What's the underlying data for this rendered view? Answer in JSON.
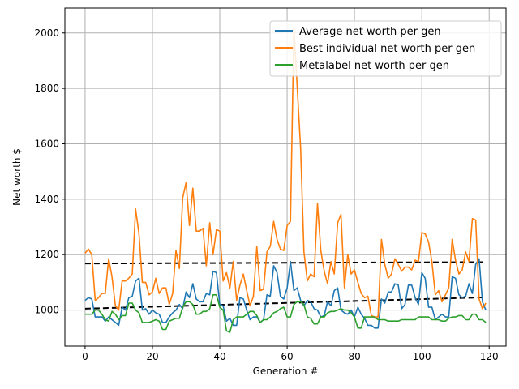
{
  "chart_data": {
    "type": "line",
    "title": "",
    "xlabel": "Generation #",
    "ylabel": "Net worth $",
    "xlim": [
      -6,
      125
    ],
    "ylim": [
      870,
      2090
    ],
    "xticks": [
      0,
      20,
      40,
      60,
      80,
      100,
      120
    ],
    "yticks": [
      1000,
      1200,
      1400,
      1600,
      1800,
      2000
    ],
    "xtick_labels": [
      "0",
      "20",
      "40",
      "60",
      "80",
      "100",
      "120"
    ],
    "ytick_labels": [
      "1000",
      "1200",
      "1400",
      "1600",
      "1800",
      "2000"
    ],
    "grid": true,
    "legend_position": "top-right",
    "x": [
      0,
      1,
      2,
      3,
      4,
      5,
      6,
      7,
      8,
      9,
      10,
      11,
      12,
      13,
      14,
      15,
      16,
      17,
      18,
      19,
      20,
      21,
      22,
      23,
      24,
      25,
      26,
      27,
      28,
      29,
      30,
      31,
      32,
      33,
      34,
      35,
      36,
      37,
      38,
      39,
      40,
      41,
      42,
      43,
      44,
      45,
      46,
      47,
      48,
      49,
      50,
      51,
      52,
      53,
      54,
      55,
      56,
      57,
      58,
      59,
      60,
      61,
      62,
      63,
      64,
      65,
      66,
      67,
      68,
      69,
      70,
      71,
      72,
      73,
      74,
      75,
      76,
      77,
      78,
      79,
      80,
      81,
      82,
      83,
      84,
      85,
      86,
      87,
      88,
      89,
      90,
      91,
      92,
      93,
      94,
      95,
      96,
      97,
      98,
      99,
      100,
      101,
      102,
      103,
      104,
      105,
      106,
      107,
      108,
      109,
      110,
      111,
      112,
      113,
      114,
      115,
      116,
      117,
      118,
      119
    ],
    "series": [
      {
        "name": "Average net worth per gen",
        "color": "#1f77b4",
        "values": [
          1035,
          1045,
          1040,
          975,
          975,
          975,
          960,
          975,
          965,
          955,
          945,
          1010,
          1000,
          1045,
          1050,
          1105,
          1115,
          1000,
          1005,
          985,
          1000,
          990,
          985,
          955,
          955,
          975,
          990,
          1000,
          1020,
          1005,
          1065,
          1045,
          1095,
          1040,
          1030,
          1030,
          1060,
          1055,
          1140,
          1135,
          1020,
          1015,
          960,
          970,
          945,
          945,
          1045,
          1040,
          1000,
          965,
          975,
          975,
          955,
          965,
          1055,
          1050,
          1160,
          1135,
          1050,
          1040,
          1080,
          1175,
          1070,
          1080,
          1035,
          1015,
          1035,
          1030,
          1005,
          1000,
          975,
          980,
          1030,
          1015,
          1070,
          1080,
          1000,
          990,
          985,
          1000,
          975,
          1010,
          985,
          970,
          945,
          945,
          935,
          935,
          1040,
          1025,
          1065,
          1065,
          1095,
          1090,
          1005,
          1020,
          1090,
          1090,
          1045,
          1020,
          1135,
          1115,
          1010,
          1010,
          965,
          975,
          985,
          975,
          975,
          1120,
          1115,
          1055,
          1045,
          1050,
          1095,
          1060,
          1165,
          1185,
          1030,
          1000
        ]
      },
      {
        "name": "Best individual net worth per gen",
        "color": "#ff7f0e",
        "values": [
          1205,
          1220,
          1200,
          1035,
          1045,
          1060,
          1060,
          1185,
          1120,
          1015,
          1000,
          1105,
          1105,
          1115,
          1130,
          1365,
          1275,
          1100,
          1100,
          1055,
          1065,
          1115,
          1060,
          1080,
          1080,
          1020,
          1060,
          1215,
          1150,
          1405,
          1460,
          1305,
          1440,
          1285,
          1285,
          1295,
          1160,
          1315,
          1200,
          1290,
          1285,
          1105,
          1135,
          1080,
          1175,
          1035,
          1090,
          1130,
          1070,
          1015,
          1050,
          1230,
          1070,
          1075,
          1210,
          1230,
          1320,
          1255,
          1220,
          1215,
          1305,
          1320,
          2020,
          1805,
          1585,
          1210,
          1105,
          1130,
          1120,
          1385,
          1215,
          1140,
          1095,
          1175,
          1130,
          1315,
          1345,
          1080,
          1200,
          1130,
          1145,
          1100,
          1060,
          1045,
          1050,
          980,
          975,
          975,
          1255,
          1165,
          1115,
          1130,
          1185,
          1165,
          1140,
          1155,
          1155,
          1145,
          1180,
          1175,
          1280,
          1275,
          1245,
          1175,
          1055,
          1070,
          1030,
          1055,
          1080,
          1255,
          1180,
          1130,
          1145,
          1210,
          1175,
          1330,
          1325,
          1040,
          1005,
          1025
        ]
      },
      {
        "name": "Metalabel net worth per gen",
        "color": "#2ca02c",
        "values": [
          985,
          985,
          985,
          1000,
          1000,
          985,
          965,
          960,
          995,
          985,
          965,
          980,
          980,
          1025,
          1025,
          1000,
          990,
          955,
          955,
          955,
          960,
          965,
          960,
          930,
          930,
          960,
          965,
          970,
          970,
          1010,
          1030,
          1030,
          1020,
          985,
          985,
          995,
          995,
          1005,
          1055,
          1055,
          1010,
          1000,
          925,
          920,
          965,
          975,
          975,
          975,
          985,
          995,
          995,
          980,
          955,
          965,
          965,
          975,
          990,
          995,
          1005,
          1010,
          975,
          975,
          1020,
          1030,
          1030,
          1020,
          975,
          970,
          950,
          950,
          975,
          975,
          990,
          995,
          995,
          1000,
          1005,
          1000,
          1000,
          990,
          975,
          935,
          935,
          975,
          975,
          975,
          975,
          965,
          965,
          965,
          960,
          960,
          960,
          960,
          965,
          965,
          965,
          965,
          965,
          975,
          975,
          975,
          975,
          965,
          965,
          965,
          960,
          960,
          970,
          975,
          975,
          980,
          980,
          965,
          965,
          985,
          985,
          965,
          965,
          955
        ]
      }
    ],
    "trend_lines": [
      {
        "color": "#000000",
        "style": "dashed",
        "x": [
          0,
          119
        ],
        "y": [
          1168,
          1173
        ]
      },
      {
        "color": "#000000",
        "style": "dashed",
        "x": [
          0,
          119
        ],
        "y": [
          1005,
          1046
        ]
      }
    ]
  }
}
